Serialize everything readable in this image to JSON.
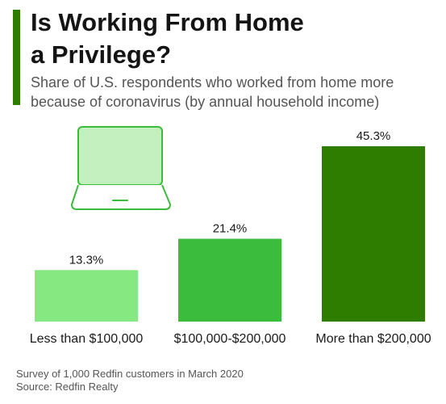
{
  "header": {
    "title_line1": "Is Working From Home",
    "title_line2": "a Privilege?",
    "subtitle_line1": "Share of U.S. respondents who worked from home more",
    "subtitle_line2": "because of coronavirus (by annual household income)"
  },
  "footer": {
    "survey_note": "Survey of 1,000 Redfin customers in March 2020",
    "source": "Source: Redfin Realty"
  },
  "colors": {
    "accent": "#2e7d00",
    "bars": [
      "#86e880",
      "#3cbc3c",
      "#2e7d00"
    ],
    "laptop_outline": "#3cbc3c",
    "laptop_screen": "#c4f0bf"
  },
  "chart_data": {
    "type": "bar",
    "categories": [
      "Less than $100,000",
      "$100,000-$200,000",
      "More than $200,000"
    ],
    "values": [
      13.3,
      21.4,
      45.3
    ],
    "value_labels": [
      "13.3%",
      "21.4%",
      "45.3%"
    ],
    "unit": "%",
    "ylim": [
      0,
      45.3
    ],
    "grid": false,
    "legend": "none"
  },
  "icons": [
    "laptop-icon"
  ]
}
